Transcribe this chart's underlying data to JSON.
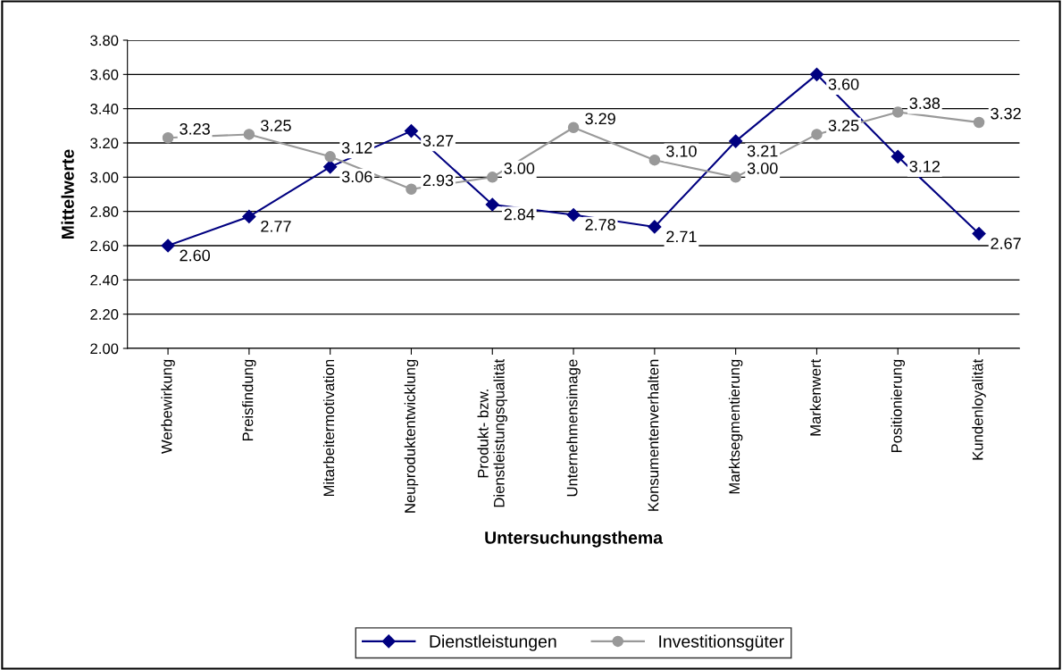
{
  "chart_data": {
    "type": "line",
    "xlabel": "Untersuchungsthema",
    "ylabel": "Mittelwerte",
    "categories": [
      "Werbewirkung",
      "Preisfindung",
      "Mitarbeitermotivation",
      "Neuproduktentwicklung",
      "Produkt- bzw.\nDienstleistungsqualität",
      "Unternehmensimage",
      "Konsumentenverhalten",
      "Marktsegmentierung",
      "Markenwert",
      "Positionierung",
      "Kundenloyalität"
    ],
    "series": [
      {
        "name": "Dienstleistungen",
        "color": "#000080",
        "marker": "diamond",
        "values": [
          2.6,
          2.77,
          3.06,
          3.27,
          2.84,
          2.78,
          2.71,
          3.21,
          3.6,
          3.12,
          2.67
        ],
        "value_labels": [
          "2.60",
          "2.77",
          "3.06",
          "3.27",
          "2.84",
          "2.78",
          "2.71",
          "3.21",
          "3.60",
          "3.12",
          "2.67"
        ]
      },
      {
        "name": "Investitionsgüter",
        "color": "#999999",
        "marker": "circle",
        "values": [
          3.23,
          3.25,
          3.12,
          2.93,
          3.0,
          3.29,
          3.1,
          3.0,
          3.25,
          3.38,
          3.32
        ],
        "value_labels": [
          "3.23",
          "3.25",
          "3.12",
          "2.93",
          "3.00",
          "3.29",
          "3.10",
          "3.00",
          "3.25",
          "3.38",
          "3.32"
        ]
      }
    ],
    "ylim": [
      2.0,
      3.8
    ],
    "yticks": [
      {
        "value": 2.0,
        "label": "2.00"
      },
      {
        "value": 2.2,
        "label": "2.20"
      },
      {
        "value": 2.4,
        "label": "2.40"
      },
      {
        "value": 2.6,
        "label": "2.60"
      },
      {
        "value": 2.8,
        "label": "2.80"
      },
      {
        "value": 3.0,
        "label": "3.00"
      },
      {
        "value": 3.2,
        "label": "3.20"
      },
      {
        "value": 3.4,
        "label": "3.40"
      },
      {
        "value": 3.6,
        "label": "3.60"
      },
      {
        "value": 3.8,
        "label": "3.80"
      }
    ],
    "grid": "y",
    "legend": "bottom",
    "line_style": "solid"
  }
}
